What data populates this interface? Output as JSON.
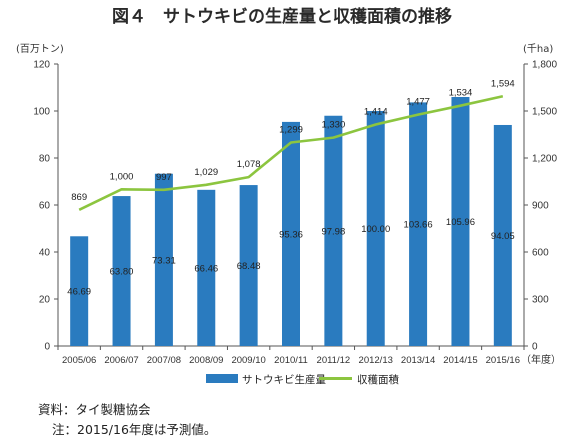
{
  "title": "図４　サトウキビの生産量と収穫面積の推移",
  "colors": {
    "bar": "#2a7bbf",
    "line": "#8cc53f",
    "axis": "#555555",
    "grid": "#d8d8d8"
  },
  "chart_data": {
    "type": "bar",
    "categories": [
      "2005/06",
      "2006/07",
      "2007/08",
      "2008/09",
      "2009/10",
      "2010/11",
      "2011/12",
      "2012/13",
      "2013/14",
      "2014/15",
      "2015/16"
    ],
    "series": [
      {
        "name": "サトウキビ生産量",
        "type": "bar",
        "axis": "left",
        "values": [
          46.69,
          63.8,
          73.31,
          66.46,
          68.48,
          95.36,
          97.98,
          100.0,
          103.66,
          105.96,
          94.05
        ],
        "labels": [
          "46.69",
          "63.80",
          "73.31",
          "66.46",
          "68.48",
          "95.36",
          "97.98",
          "100.00",
          "103.66",
          "105.96",
          "94.05"
        ]
      },
      {
        "name": "収穫面積",
        "type": "line",
        "axis": "right",
        "values": [
          869,
          1000,
          997,
          1029,
          1078,
          1299,
          1330,
          1414,
          1477,
          1534,
          1594
        ],
        "labels": [
          "869",
          "1,000",
          "997",
          "1,029",
          "1,078",
          "1,299",
          "1,330",
          "1,414",
          "1,477",
          "1,534",
          "1,594"
        ]
      }
    ],
    "y_left": {
      "unit": "(百万トン)",
      "ylim": [
        0,
        120
      ],
      "ticks": [
        "0",
        "20",
        "40",
        "60",
        "80",
        "100",
        "120"
      ]
    },
    "y_right": {
      "unit": "(千ha)",
      "ylim": [
        0,
        1800
      ],
      "ticks": [
        "0",
        "300",
        "600",
        "900",
        "1,200",
        "1,500",
        "1,800"
      ]
    },
    "x_unit": "（年度）",
    "legend_position": "bottom",
    "grid": false
  },
  "footnotes": {
    "source": "資料：タイ製糖協会",
    "note": "注：2015/16年度は予測値。"
  }
}
